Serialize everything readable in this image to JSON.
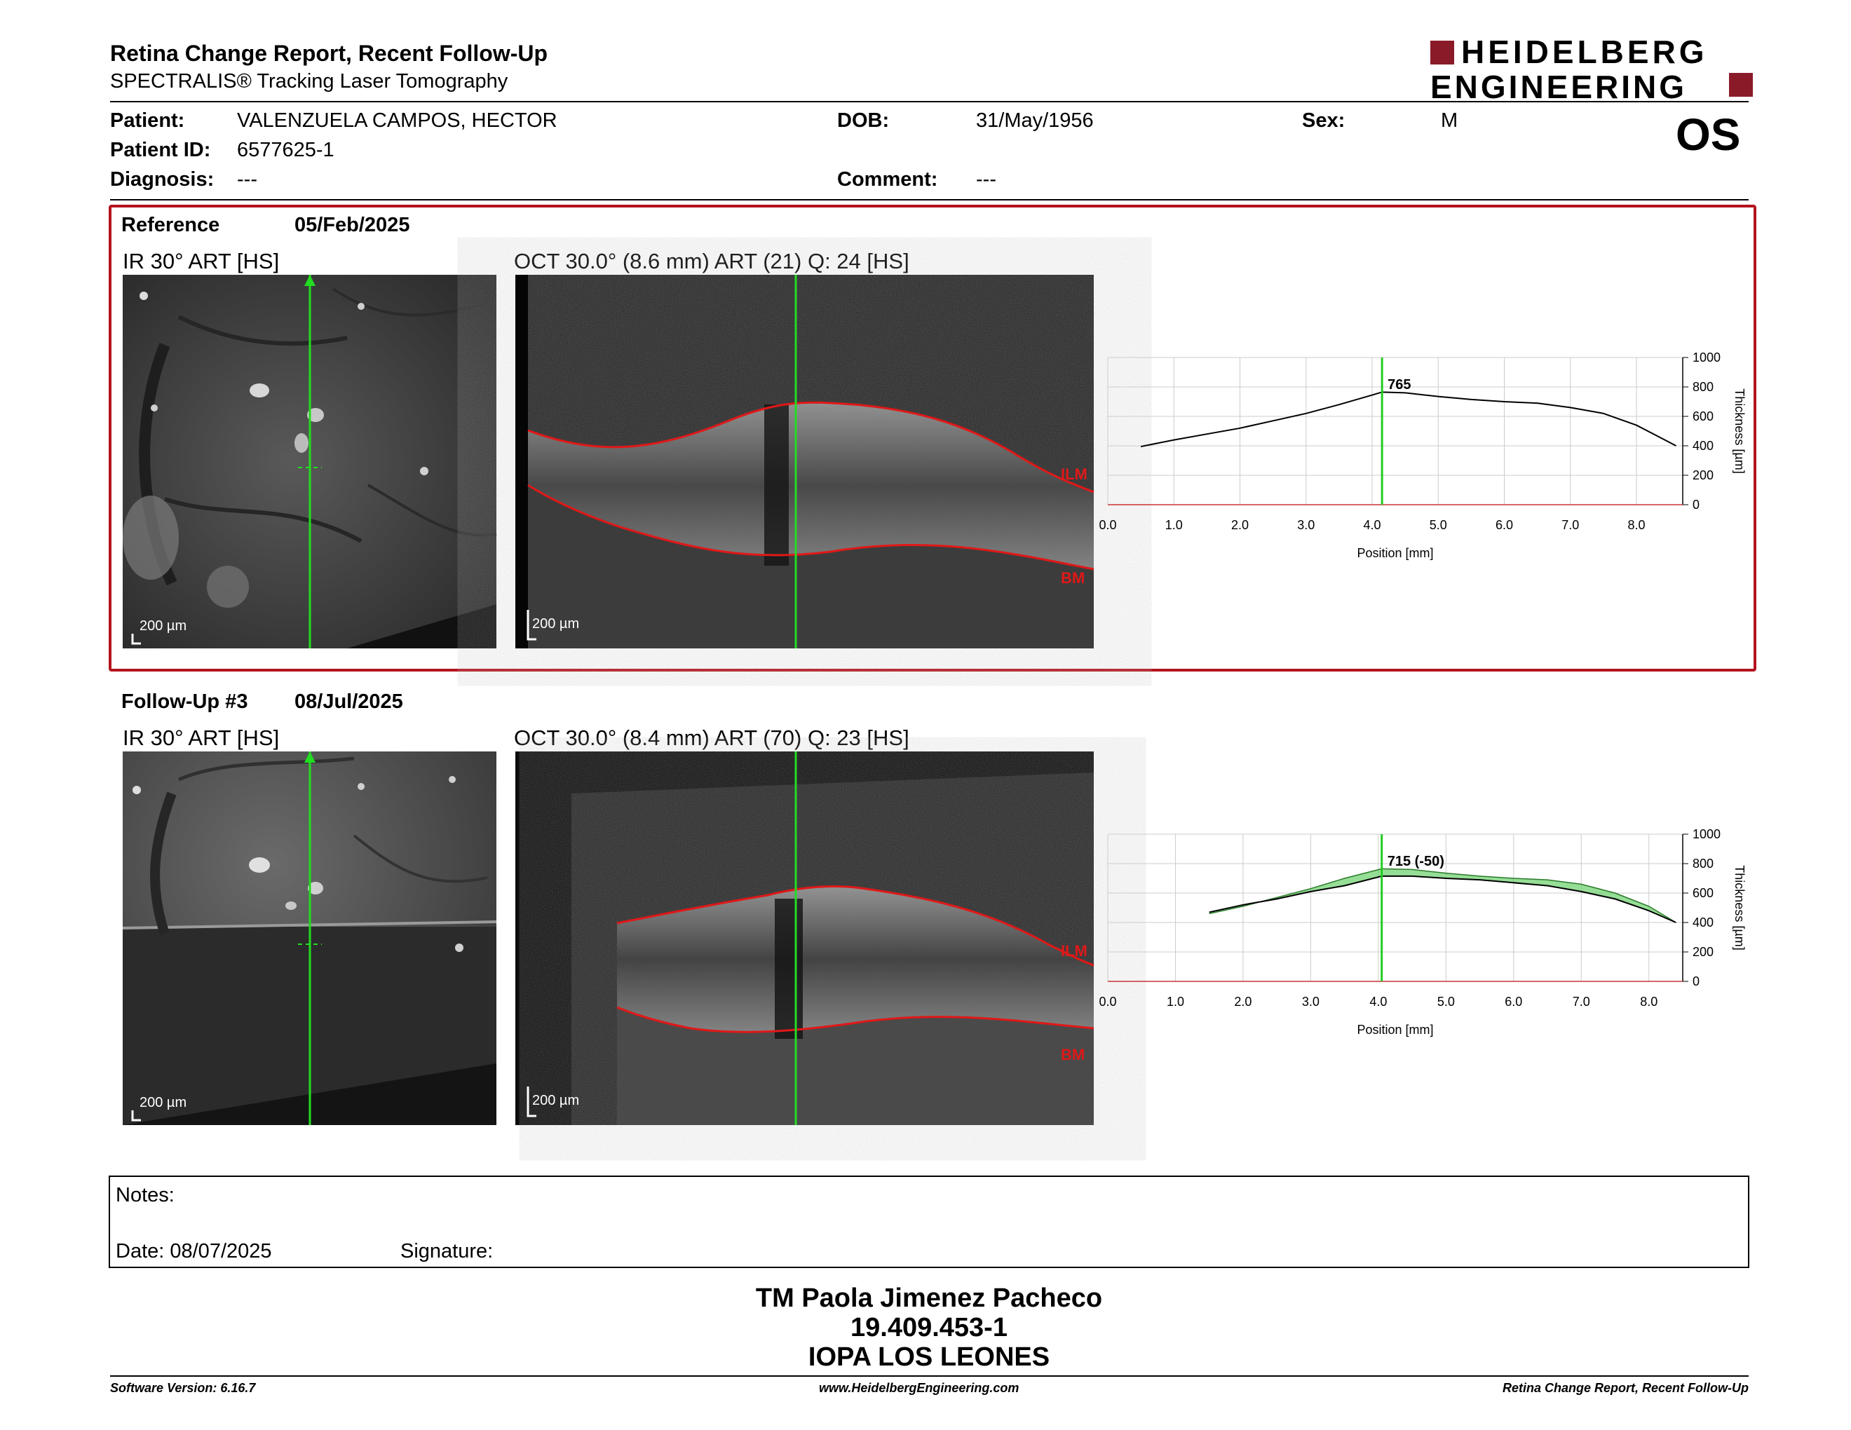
{
  "report": {
    "title": "Retina Change Report, Recent Follow-Up",
    "subtitle": "SPECTRALIS® Tracking Laser Tomography",
    "brand_line1": "HEIDELBERG",
    "brand_line2": "ENGINEERING",
    "eye": "OS"
  },
  "patient": {
    "patient_label": "Patient:",
    "patient_value": "VALENZUELA CAMPOS, HECTOR",
    "id_label": "Patient ID:",
    "id_value": "6577625-1",
    "diagnosis_label": "Diagnosis:",
    "diagnosis_value": "---",
    "dob_label": "DOB:",
    "dob_value": "31/May/1956",
    "comment_label": "Comment:",
    "comment_value": "---",
    "sex_label": "Sex:",
    "sex_value": "M"
  },
  "reference": {
    "label": "Reference",
    "date": "05/Feb/2025",
    "ir_label": "IR 30° ART [HS]",
    "oct_label": "OCT 30.0° (8.6 mm) ART (21) Q: 24 [HS]",
    "scale": "200 µm",
    "ilm": "ILM",
    "bm": "BM"
  },
  "followup": {
    "label": "Follow-Up #3",
    "date": "08/Jul/2025",
    "ir_label": "IR 30° ART [HS]",
    "oct_label": "OCT 30.0° (8.4 mm) ART (70) Q: 23 [HS]",
    "scale": "200 µm",
    "ilm": "ILM",
    "bm": "BM"
  },
  "chart_data": [
    {
      "type": "line",
      "xlabel": "Position [mm]",
      "ylabel": "Thickness [µm]",
      "xlim": [
        0,
        8.7
      ],
      "ylim": [
        0,
        1000
      ],
      "xticks": [
        "0.0",
        "1.0",
        "2.0",
        "3.0",
        "4.0",
        "5.0",
        "6.0",
        "7.0",
        "8.0"
      ],
      "yticks": [
        "0",
        "200",
        "400",
        "600",
        "800",
        "1000"
      ],
      "grid": true,
      "marker_x": 4.15,
      "marker_label": "765",
      "series": [
        {
          "x": [
            0.5,
            1.0,
            1.5,
            2.0,
            2.5,
            3.0,
            3.5,
            4.0,
            4.15,
            4.5,
            5.0,
            5.5,
            6.0,
            6.5,
            7.0,
            7.5,
            8.0,
            8.3,
            8.6
          ],
          "y": [
            395,
            440,
            480,
            520,
            570,
            620,
            680,
            745,
            765,
            760,
            735,
            715,
            700,
            690,
            660,
            620,
            540,
            470,
            400
          ]
        }
      ]
    },
    {
      "type": "line",
      "xlabel": "Position [mm]",
      "ylabel": "Thickness [µm]",
      "xlim": [
        0,
        8.5
      ],
      "ylim": [
        0,
        1000
      ],
      "xticks": [
        "0.0",
        "1.0",
        "2.0",
        "3.0",
        "4.0",
        "5.0",
        "6.0",
        "7.0",
        "8.0"
      ],
      "yticks": [
        "0",
        "200",
        "400",
        "600",
        "800",
        "1000"
      ],
      "grid": true,
      "marker_x": 4.05,
      "marker_label": "715 (-50)",
      "series": [
        {
          "x": [
            1.5,
            2.0,
            2.5,
            3.0,
            3.5,
            4.05,
            4.5,
            5.0,
            5.5,
            6.0,
            6.5,
            7.0,
            7.5,
            8.0,
            8.4
          ],
          "y": [
            470,
            520,
            560,
            610,
            650,
            715,
            715,
            700,
            690,
            670,
            650,
            610,
            560,
            480,
            400
          ]
        },
        {
          "x": [
            1.5,
            2.0,
            2.5,
            3.0,
            3.5,
            4.05,
            4.5,
            5.0,
            5.5,
            6.0,
            6.5,
            7.0,
            7.5,
            8.0,
            8.4
          ],
          "y": [
            460,
            510,
            570,
            630,
            700,
            765,
            760,
            735,
            715,
            700,
            690,
            660,
            600,
            510,
            400
          ]
        }
      ]
    }
  ],
  "notes": {
    "notes_label": "Notes:",
    "date_label": "Date: 08/07/2025",
    "signature_label": "Signature:"
  },
  "signature": {
    "name": "TM Paola Jimenez Pacheco",
    "rut": "19.409.453-1",
    "place": "IOPA LOS LEONES"
  },
  "footer": {
    "version": "Software Version: 6.16.7",
    "url": "www.HeidelbergEngineering.com",
    "report_name": "Retina Change Report, Recent Follow-Up"
  }
}
